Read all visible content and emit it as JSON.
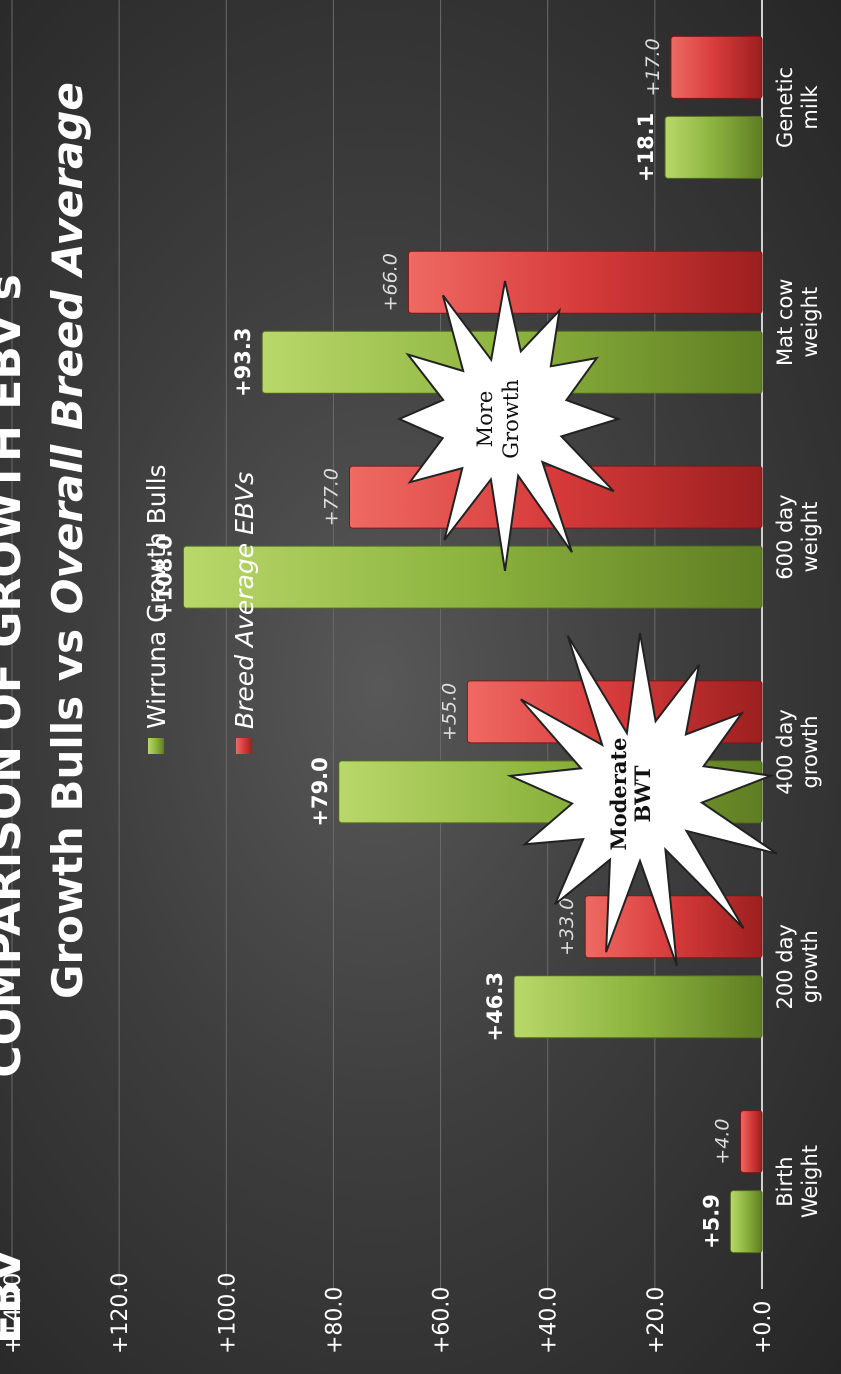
{
  "header": {
    "top_line_left": "EBV",
    "top_line_main": "COMPARISON OF GROWTH EBV's",
    "subtitle_part1": "Growth Bulls vs ",
    "subtitle_part2": "Overall Breed Average"
  },
  "legend": {
    "items": [
      {
        "label": "Wirruna Growth Bulls",
        "color": "#8cb33e",
        "italic": false
      },
      {
        "label": "Breed Average EBVs",
        "color": "#d63a3a",
        "italic": true
      }
    ]
  },
  "callouts": [
    {
      "line1": "Moderate",
      "line2": "BWT",
      "bold": true
    },
    {
      "line1": "More",
      "line2": "Growth",
      "bold": false
    }
  ],
  "chart_data": {
    "type": "bar",
    "categories": [
      [
        "Birth",
        "Weight"
      ],
      [
        "200 day",
        "growth"
      ],
      [
        "400 day",
        "growth"
      ],
      [
        "600 day",
        "weight"
      ],
      [
        "Mat cow",
        "weight"
      ],
      [
        "Genetic",
        "milk"
      ]
    ],
    "series": [
      {
        "name": "Wirruna Growth Bulls",
        "values": [
          5.9,
          46.3,
          79.0,
          108.0,
          93.3,
          18.1
        ],
        "labels": [
          "+5.9",
          "+46.3",
          "+79.0",
          "+108.0",
          "+93.3",
          "+18.1"
        ],
        "color": "#8cb33e"
      },
      {
        "name": "Breed Average EBVs",
        "values": [
          4.0,
          33.0,
          55.0,
          77.0,
          66.0,
          17.0
        ],
        "labels": [
          "+4.0",
          "+33.0",
          "+55.0",
          "+77.0",
          "+66.0",
          "+17.0"
        ],
        "color": "#d63a3a"
      }
    ],
    "ylim": [
      0,
      140
    ],
    "yticks": [
      0,
      20,
      40,
      60,
      80,
      100,
      120,
      140
    ],
    "ytick_labels": [
      "+0.0",
      "+20.0",
      "+40.0",
      "+60.0",
      "+80.0",
      "+100.0",
      "+120.0",
      "+140.0"
    ],
    "grid": true,
    "orientation": "rotated-90-counterclockwise",
    "legend_position": "top-left"
  }
}
